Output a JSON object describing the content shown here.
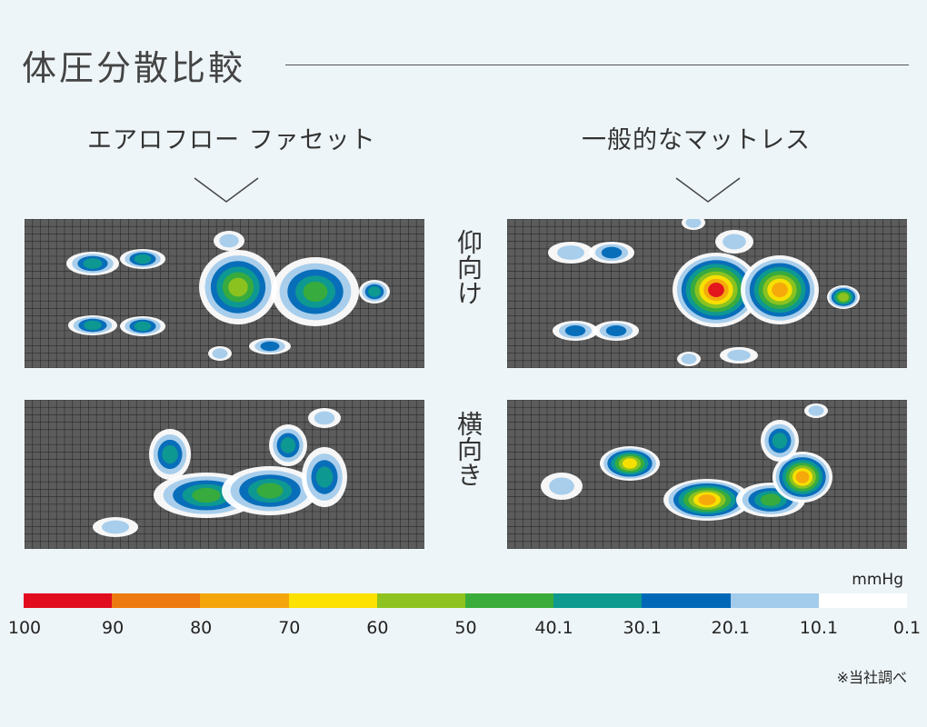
{
  "title": "体圧分散比較",
  "columns": [
    {
      "label": "エアロフロー ファセット"
    },
    {
      "label": "一般的なマットレス"
    }
  ],
  "poses": [
    "仰向け",
    "横向き"
  ],
  "legend": {
    "unit": "mmHg",
    "colors": [
      "#e10d1f",
      "#ec7a10",
      "#f4a50c",
      "#fde100",
      "#8fc31f",
      "#3aac3a",
      "#0e9a8f",
      "#0068b7",
      "#a3cbeb",
      "#ffffff"
    ],
    "ticks": [
      "100",
      "90",
      "80",
      "70",
      "60",
      "50",
      "40.1",
      "30.1",
      "20.1",
      "10.1",
      "0.1"
    ]
  },
  "note": "※当社調べ"
}
